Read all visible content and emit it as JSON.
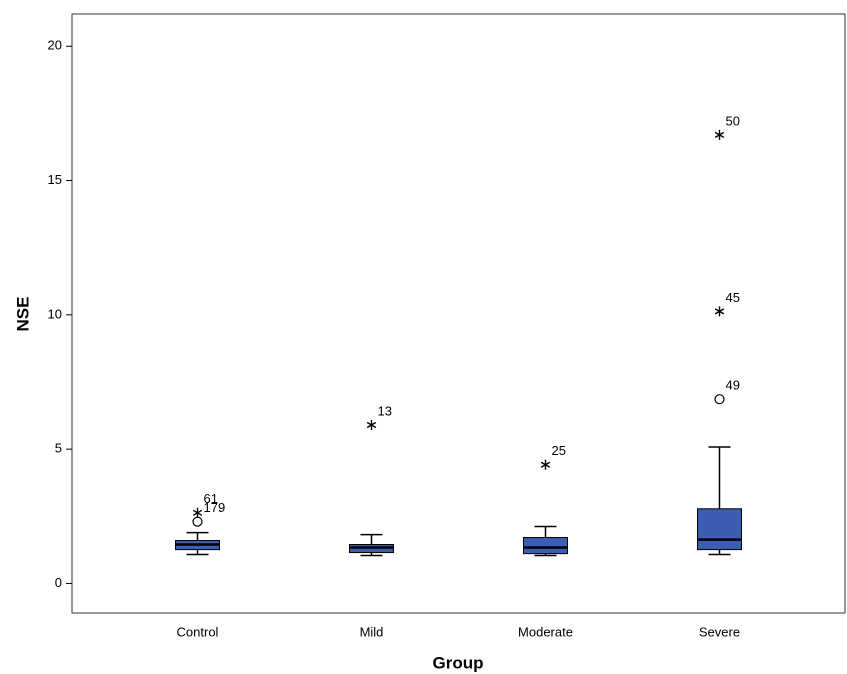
{
  "chart_data": {
    "type": "box",
    "x_label": "Group",
    "y_label": "NSE",
    "categories": [
      "Control",
      "Mild",
      "Moderate",
      "Severe"
    ],
    "boxes": [
      {
        "min": 1.08,
        "q1": 1.26,
        "median": 1.45,
        "q3": 1.6,
        "max": 1.89
      },
      {
        "min": 1.04,
        "q1": 1.15,
        "median": 1.34,
        "q3": 1.45,
        "max": 1.82
      },
      {
        "min": 1.04,
        "q1": 1.11,
        "median": 1.34,
        "q3": 1.71,
        "max": 2.12
      },
      {
        "min": 1.08,
        "q1": 1.26,
        "median": 1.63,
        "q3": 2.78,
        "max": 5.08
      }
    ],
    "outliers": [
      [
        {
          "value": 2.63,
          "label": "61",
          "marker": "star"
        },
        {
          "value": 2.3,
          "label": "179",
          "marker": "circle"
        }
      ],
      [
        {
          "value": 5.9,
          "label": "13",
          "marker": "star"
        }
      ],
      [
        {
          "value": 4.42,
          "label": "25",
          "marker": "star"
        }
      ],
      [
        {
          "value": 6.86,
          "label": "49",
          "marker": "circle"
        },
        {
          "value": 10.13,
          "label": "45",
          "marker": "star"
        },
        {
          "value": 16.7,
          "label": "50",
          "marker": "star"
        }
      ]
    ],
    "color": "#3d5db3",
    "ylim": [
      -1.1,
      21.2
    ],
    "yticks": [
      0,
      5,
      10,
      15,
      20
    ]
  }
}
